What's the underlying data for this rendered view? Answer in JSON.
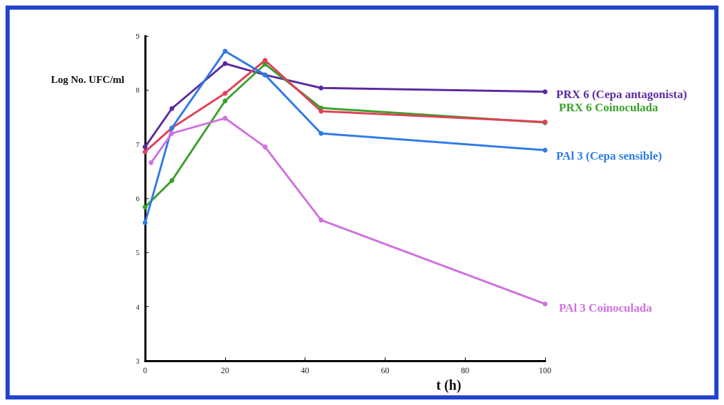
{
  "chart_data": {
    "type": "line",
    "xlabel": "t (h)",
    "ylabel": "Log No. UFC/ml",
    "xlim": [
      0,
      100
    ],
    "xticks": [
      0,
      20,
      40,
      60,
      80,
      100
    ],
    "ylim": [
      3,
      9
    ],
    "yticks": [
      3,
      4,
      5,
      6,
      7,
      8,
      9
    ],
    "grid": false,
    "legend": false,
    "marker": "circle",
    "line_style": "solid",
    "series": [
      {
        "name": "PRX 6 (Cepa antagonista)",
        "color": "#5b2a9e",
        "x": [
          0,
          6.7,
          20,
          30,
          44,
          100
        ],
        "values": [
          6.95,
          7.66,
          8.49,
          8.28,
          8.04,
          7.97
        ]
      },
      {
        "name": "PRX 6 Coinoculada",
        "color": "#3aa02a",
        "x": [
          0,
          6.7,
          20,
          30,
          44,
          100
        ],
        "values": [
          5.84,
          6.33,
          7.8,
          8.48,
          7.67,
          7.4
        ]
      },
      {
        "color": "#e0405a",
        "x": [
          0,
          6.7,
          20,
          30,
          44,
          100
        ],
        "values": [
          6.86,
          7.3,
          7.94,
          8.55,
          7.61,
          7.41
        ]
      },
      {
        "name": "PAl 3 (Cepa sensible)",
        "color": "#2e7be6",
        "x": [
          0,
          6.7,
          20,
          30,
          44,
          100
        ],
        "values": [
          5.55,
          7.3,
          8.72,
          8.28,
          7.2,
          6.89
        ]
      },
      {
        "name": "PAl 3 Coinoculada",
        "color": "#d070e0",
        "x": [
          1.5,
          6.7,
          20,
          30,
          44,
          100
        ],
        "values": [
          6.66,
          7.2,
          7.48,
          6.95,
          5.6,
          4.05
        ]
      }
    ]
  }
}
